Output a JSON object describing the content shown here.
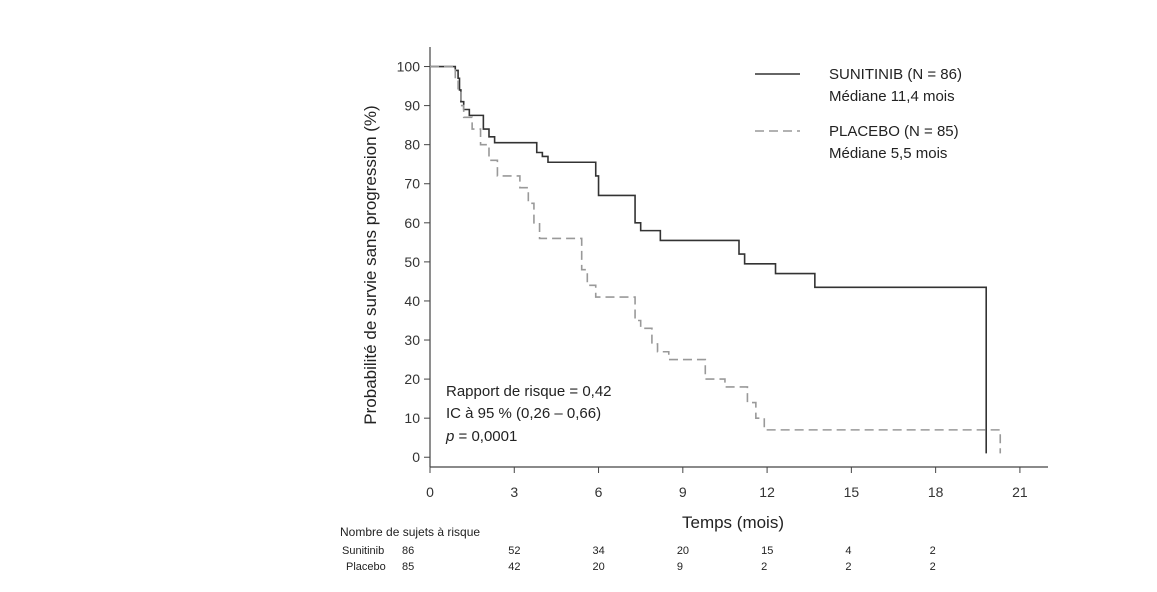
{
  "chart_data": {
    "type": "line",
    "xlabel": "Temps (mois)",
    "ylabel": "Probabilité de survie sans progression (%)",
    "xlim": [
      0,
      22
    ],
    "ylim": [
      -2.5,
      105
    ],
    "xticks": [
      0,
      3,
      6,
      9,
      12,
      15,
      18,
      21
    ],
    "yticks": [
      0,
      10,
      20,
      30,
      40,
      50,
      60,
      70,
      80,
      90,
      100
    ],
    "grid": false,
    "legend_position": "top-right",
    "series": [
      {
        "name": "SUNITINIB (N = 86)",
        "subtitle": "Médiane 11,4 mois",
        "color": "#333333",
        "style": "solid",
        "x": [
          0,
          0.8,
          0.9,
          1.0,
          1.05,
          1.1,
          1.2,
          1.4,
          1.9,
          2.1,
          2.3,
          3.8,
          4.0,
          4.2,
          5.9,
          6.0,
          7.3,
          7.5,
          8.2,
          11.0,
          11.2,
          12.3,
          13.7,
          19.8,
          19.8
        ],
        "y": [
          100,
          100,
          99,
          97,
          94,
          91,
          89,
          87.5,
          84,
          82,
          80.5,
          78,
          77,
          75.5,
          72,
          67,
          60,
          58,
          55.5,
          52,
          49.5,
          47,
          43.5,
          43.5,
          1
        ]
      },
      {
        "name": "PLACEBO (N = 85)",
        "subtitle": "Médiane 5,5 mois",
        "color": "#999999",
        "style": "dashed",
        "x": [
          0,
          0.8,
          0.9,
          1.0,
          1.1,
          1.2,
          1.5,
          1.8,
          2.1,
          2.4,
          3.2,
          3.5,
          3.7,
          3.9,
          5.4,
          5.6,
          5.9,
          7.3,
          7.5,
          7.9,
          8.1,
          8.5,
          9.8,
          10.5,
          11.3,
          11.6,
          11.9,
          20.3,
          20.3
        ],
        "y": [
          100,
          100,
          97,
          94,
          90,
          87,
          84,
          80,
          76,
          72,
          69,
          65,
          60,
          56,
          48,
          44,
          41,
          35,
          33,
          29,
          27,
          25,
          20,
          18,
          14,
          10,
          7,
          7,
          1
        ]
      }
    ],
    "annotations": [
      "Rapport de risque = 0,42",
      "IC à 95 % (0,26 – 0,66)",
      "p = 0,0001"
    ],
    "risk_table": {
      "title": "Nombre de sujets à risque",
      "times": [
        0,
        3,
        6,
        9,
        12,
        15,
        18
      ],
      "rows": [
        {
          "label": "Sunitinib",
          "values": [
            "86",
            "52",
            "34",
            "20",
            "15",
            "4",
            "2"
          ]
        },
        {
          "label": "Placebo",
          "values": [
            "85",
            "42",
            "20",
            "9",
            "2",
            "2",
            "2"
          ]
        }
      ]
    }
  }
}
